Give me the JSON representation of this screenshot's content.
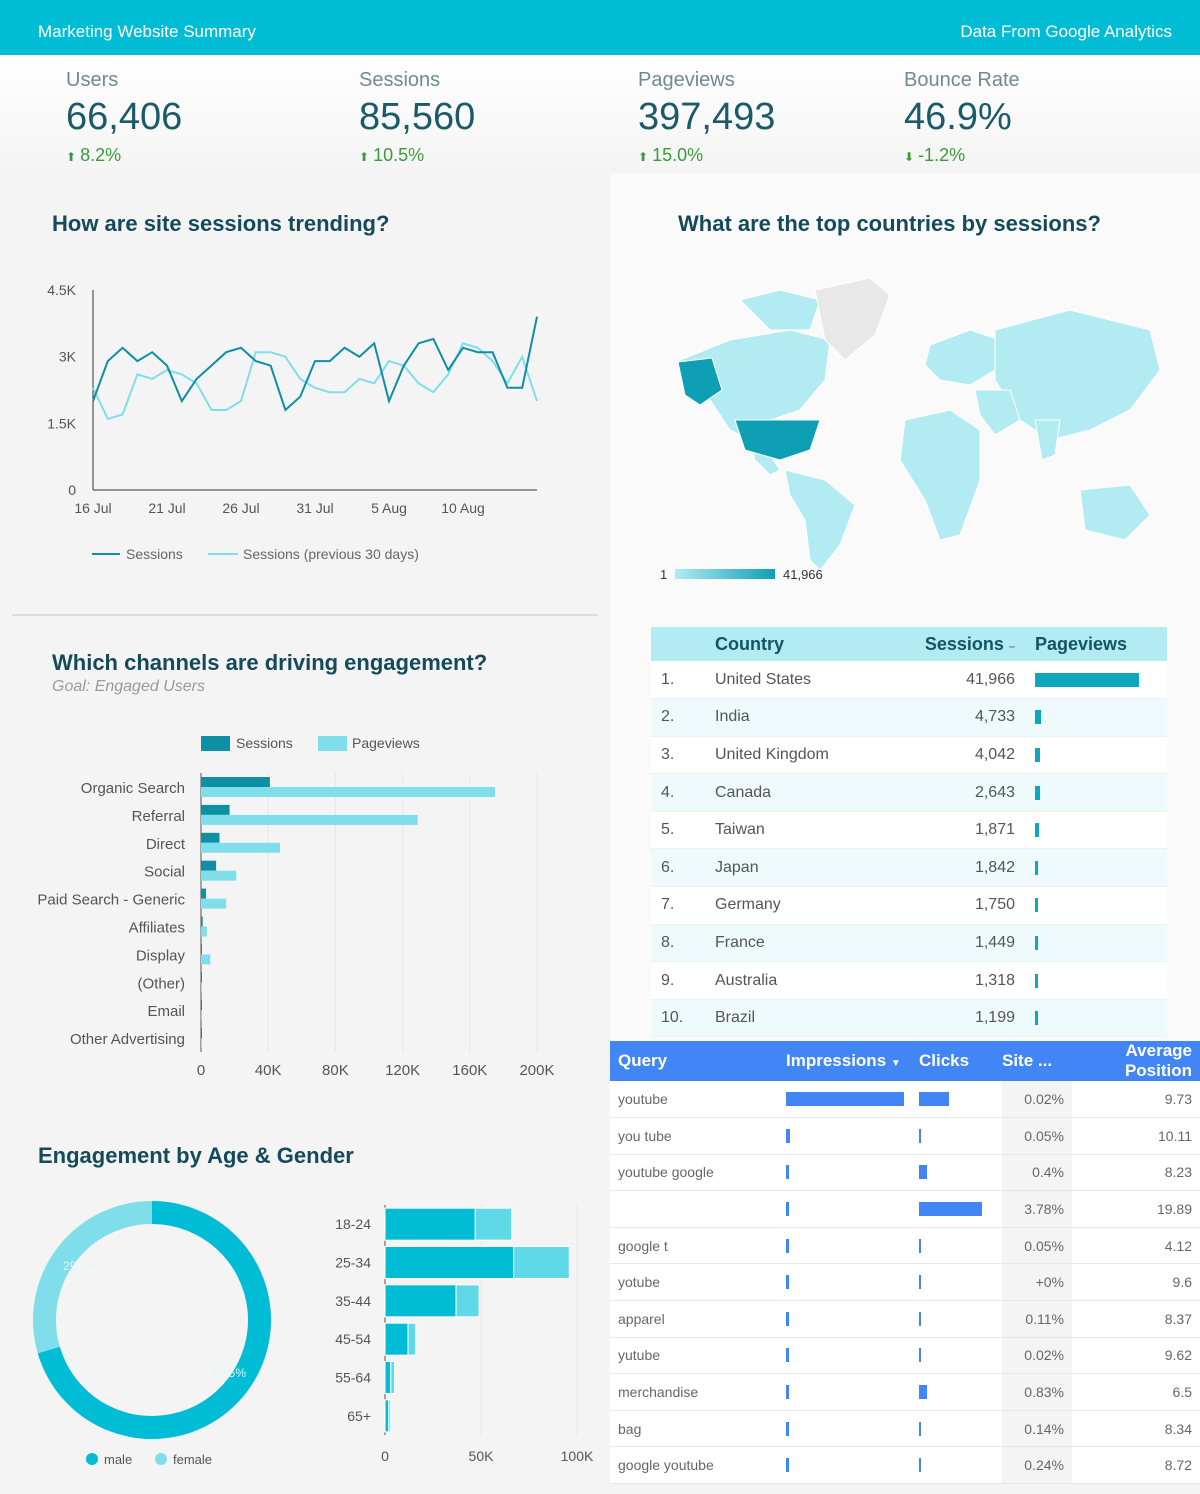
{
  "header": {
    "title": "Marketing Website Summary",
    "source": "Data From Google Analytics"
  },
  "kpis": [
    {
      "label": "Users",
      "value": "66,406",
      "delta": "8.2%",
      "direction": "up"
    },
    {
      "label": "Sessions",
      "value": "85,560",
      "delta": "10.5%",
      "direction": "up"
    },
    {
      "label": "Pageviews",
      "value": "397,493",
      "delta": "15.0%",
      "direction": "up"
    },
    {
      "label": "Bounce Rate",
      "value": "46.9%",
      "delta": "-1.2%",
      "direction": "down"
    }
  ],
  "trend": {
    "title": "How are site sessions trending?",
    "legend": [
      "Sessions",
      "Sessions (previous 30 days)"
    ]
  },
  "map": {
    "title": "What are the top countries by sessions?",
    "scale_min": "1",
    "scale_max": "41,966"
  },
  "countries_table": {
    "headers": [
      "Country",
      "Sessions",
      "Pageviews"
    ],
    "rows": [
      {
        "rank": "1.",
        "country": "United States",
        "sessions": "41,966",
        "pageviews_fraction": 1.0
      },
      {
        "rank": "2.",
        "country": "India",
        "sessions": "4,733",
        "pageviews_fraction": 0.06
      },
      {
        "rank": "3.",
        "country": "United Kingdom",
        "sessions": "4,042",
        "pageviews_fraction": 0.05
      },
      {
        "rank": "4.",
        "country": "Canada",
        "sessions": "2,643",
        "pageviews_fraction": 0.05
      },
      {
        "rank": "5.",
        "country": "Taiwan",
        "sessions": "1,871",
        "pageviews_fraction": 0.04
      },
      {
        "rank": "6.",
        "country": "Japan",
        "sessions": "1,842",
        "pageviews_fraction": 0.03
      },
      {
        "rank": "7.",
        "country": "Germany",
        "sessions": "1,750",
        "pageviews_fraction": 0.03
      },
      {
        "rank": "8.",
        "country": "France",
        "sessions": "1,449",
        "pageviews_fraction": 0.02
      },
      {
        "rank": "9.",
        "country": "Australia",
        "sessions": "1,318",
        "pageviews_fraction": 0.02
      },
      {
        "rank": "10.",
        "country": "Brazil",
        "sessions": "1,199",
        "pageviews_fraction": 0.02
      }
    ]
  },
  "channels": {
    "title": "Which channels are driving engagement?",
    "goal": "Goal: Engaged Users"
  },
  "age_gender": {
    "title": "Engagement by Age & Gender",
    "donut_labels": [
      "29.5%",
      "70.5%"
    ]
  },
  "query_table": {
    "headers": [
      "Query",
      "Impressions",
      "Clicks",
      "Site ...",
      "Average Position"
    ],
    "sort_indicator": "▼",
    "rows": [
      {
        "query": "youtube",
        "impressions": 1.0,
        "clicks": 0.45,
        "site": "0.02%",
        "avg": "9.73"
      },
      {
        "query": "you tube",
        "impressions": 0.03,
        "clicks": 0.02,
        "site": "0.05%",
        "avg": "10.11"
      },
      {
        "query": "youtube google",
        "impressions": 0.02,
        "clicks": 0.12,
        "site": "0.4%",
        "avg": "8.23"
      },
      {
        "query": "",
        "impressions": 0.02,
        "clicks": 0.95,
        "site": "3.78%",
        "avg": "19.89"
      },
      {
        "query": "google t",
        "impressions": 0.015,
        "clicks": 0.02,
        "site": "0.05%",
        "avg": "4.12"
      },
      {
        "query": "yotube",
        "impressions": 0.015,
        "clicks": 0.02,
        "site": "+0%",
        "avg": "9.6"
      },
      {
        "query": "apparel",
        "impressions": 0.015,
        "clicks": 0.02,
        "site": "0.11%",
        "avg": "8.37"
      },
      {
        "query": "yutube",
        "impressions": 0.015,
        "clicks": 0.02,
        "site": "0.02%",
        "avg": "9.62"
      },
      {
        "query": "merchandise",
        "impressions": 0.015,
        "clicks": 0.12,
        "site": "0.83%",
        "avg": "6.5"
      },
      {
        "query": "bag",
        "impressions": 0.015,
        "clicks": 0.02,
        "site": "0.14%",
        "avg": "8.34"
      },
      {
        "query": "google youtube",
        "impressions": 0.015,
        "clicks": 0.02,
        "site": "0.24%",
        "avg": "8.72"
      }
    ]
  },
  "colors": {
    "primary": "#00bcd4",
    "dark_teal": "#0e8fa3",
    "light_teal": "#80deea",
    "blue": "#4285f4"
  },
  "chart_data": [
    {
      "type": "line",
      "x_ticks": [
        "16 Jul",
        "21 Jul",
        "26 Jul",
        "31 Jul",
        "5 Aug",
        "10 Aug"
      ],
      "y_ticks": [
        "0",
        "1.5K",
        "3K",
        "4.5K"
      ],
      "ylim": [
        0,
        4500
      ],
      "x": [
        "16 Jul",
        "17 Jul",
        "18 Jul",
        "19 Jul",
        "20 Jul",
        "21 Jul",
        "22 Jul",
        "23 Jul",
        "24 Jul",
        "25 Jul",
        "26 Jul",
        "27 Jul",
        "28 Jul",
        "29 Jul",
        "30 Jul",
        "31 Jul",
        "1 Aug",
        "2 Aug",
        "3 Aug",
        "4 Aug",
        "5 Aug",
        "6 Aug",
        "7 Aug",
        "8 Aug",
        "9 Aug",
        "10 Aug",
        "11 Aug",
        "12 Aug",
        "13 Aug",
        "14 Aug",
        "15 Aug"
      ],
      "series": [
        {
          "name": "Sessions",
          "values": [
            2000,
            2900,
            3200,
            2900,
            3100,
            2800,
            2000,
            2500,
            2800,
            3100,
            3200,
            2900,
            2800,
            1800,
            2100,
            2900,
            2900,
            3200,
            3000,
            3300,
            2000,
            2800,
            3300,
            3400,
            2700,
            3200,
            3100,
            3100,
            2300,
            2300,
            3900
          ]
        },
        {
          "name": "Sessions (previous 30 days)",
          "values": [
            2300,
            1600,
            1700,
            2600,
            2500,
            2700,
            2600,
            2400,
            1800,
            1800,
            2000,
            3100,
            3100,
            3000,
            2500,
            2300,
            2200,
            2200,
            2500,
            2400,
            2900,
            2800,
            2400,
            2200,
            2600,
            3300,
            3200,
            2900,
            2400,
            3000,
            2000
          ]
        }
      ],
      "legend": "bottom"
    },
    {
      "type": "bar",
      "orientation": "horizontal",
      "categories": [
        "Organic Search",
        "Referral",
        "Direct",
        "Social",
        "Paid Search - Generic",
        "Affiliates",
        "Display",
        "(Other)",
        "Email",
        "Other Advertising"
      ],
      "series": [
        {
          "name": "Sessions",
          "values": [
            41000,
            17000,
            11000,
            9000,
            3000,
            1000,
            500,
            300,
            200,
            100
          ]
        },
        {
          "name": "Pageviews",
          "values": [
            175000,
            129000,
            47000,
            21000,
            15000,
            3500,
            5500,
            200,
            150,
            100
          ]
        }
      ],
      "x_ticks": [
        "0",
        "40K",
        "80K",
        "120K",
        "160K",
        "200K"
      ],
      "xlim": [
        0,
        200000
      ],
      "legend": "top"
    },
    {
      "type": "pie",
      "donut": true,
      "labels": [
        "male",
        "female"
      ],
      "values": [
        70.5,
        29.5
      ]
    },
    {
      "type": "bar",
      "orientation": "horizontal",
      "stacked": true,
      "categories": [
        "18-24",
        "25-34",
        "35-44",
        "45-54",
        "55-64",
        "65+"
      ],
      "series": [
        {
          "name": "male",
          "values": [
            47000,
            67000,
            37000,
            12000,
            3000,
            2000
          ]
        },
        {
          "name": "female",
          "values": [
            19000,
            29000,
            12000,
            4000,
            2000,
            1000
          ]
        }
      ],
      "x_ticks": [
        "0",
        "50K",
        "100K"
      ],
      "xlim": [
        0,
        100000
      ]
    }
  ]
}
